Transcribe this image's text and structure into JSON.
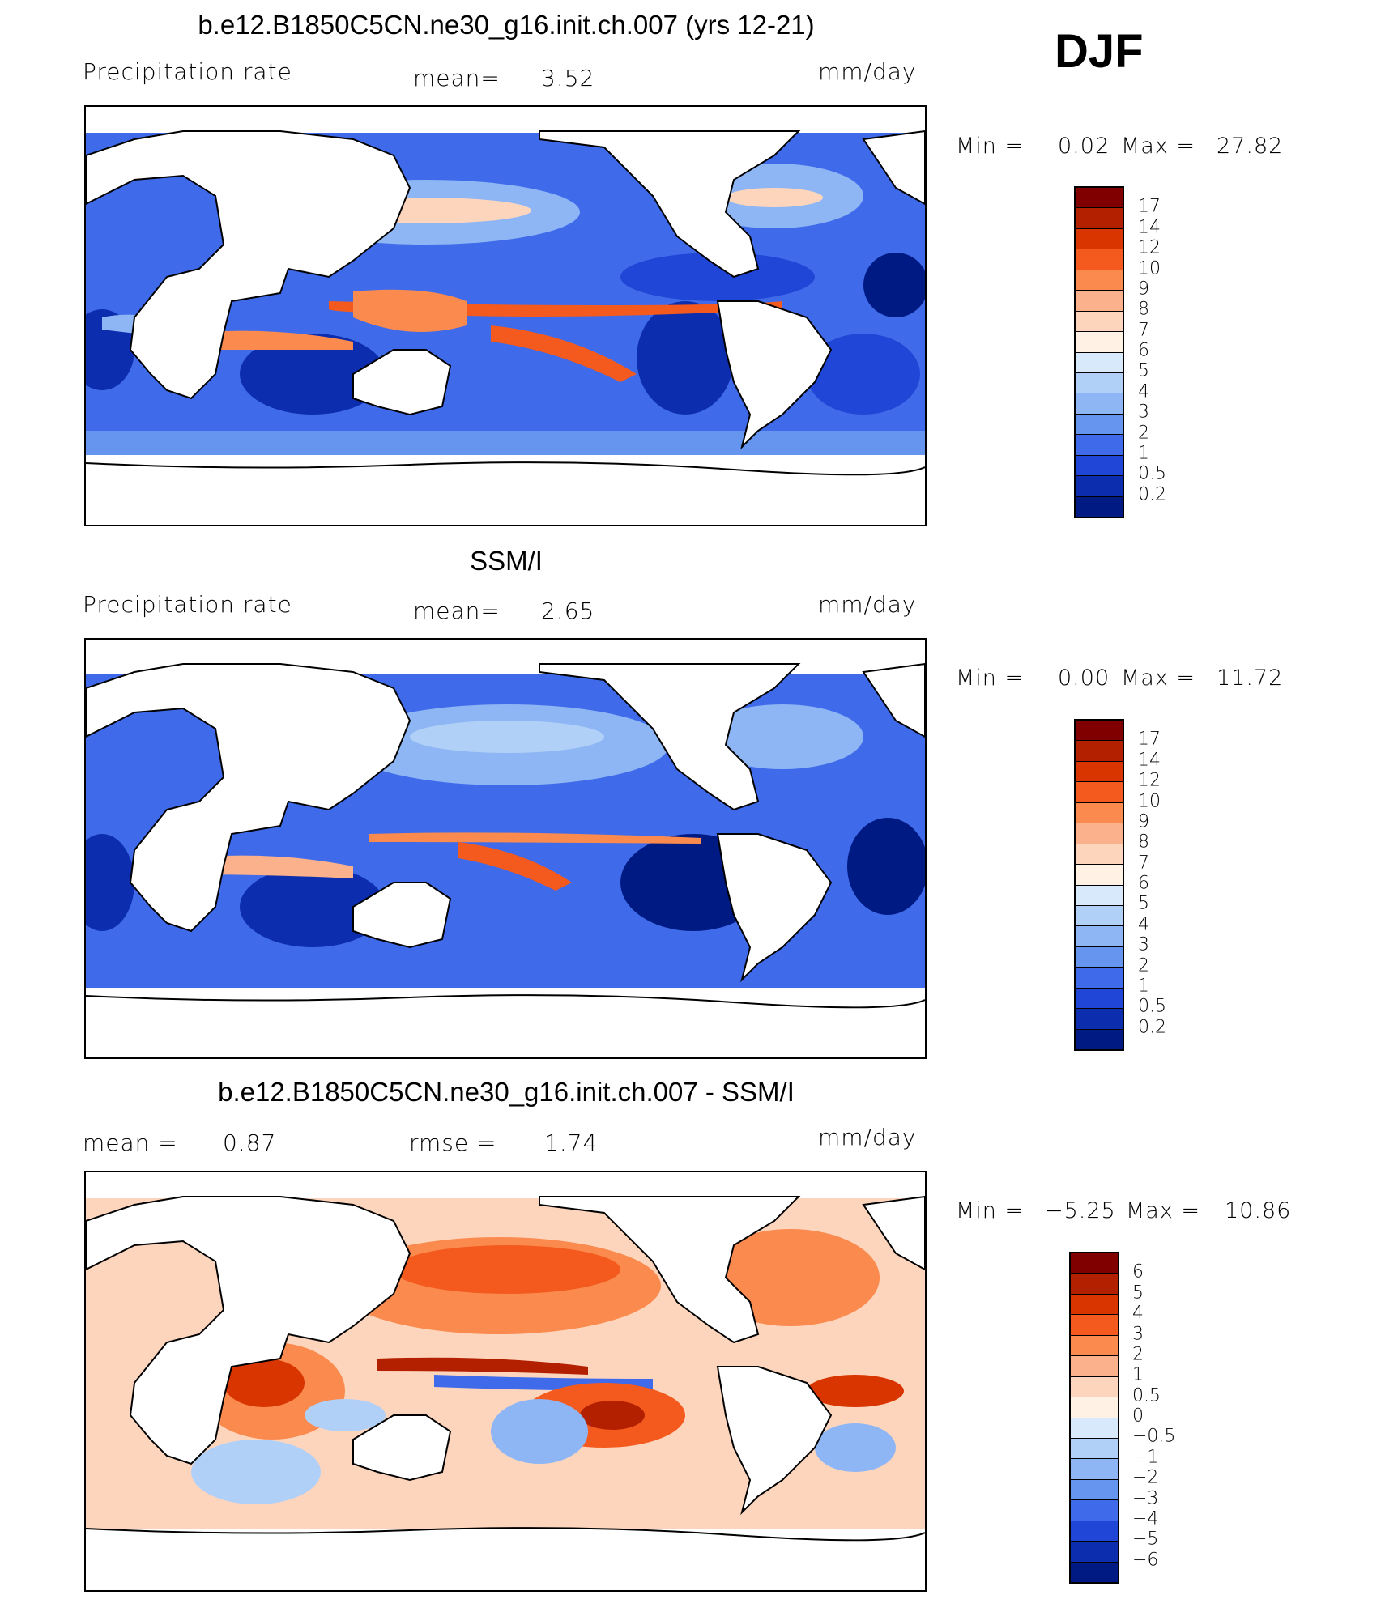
{
  "season": "DJF",
  "units_label": "mm/day",
  "panels": [
    {
      "id": "model",
      "title": "b.e12.B1850C5CN.ne30_g16.init.ch.007 (yrs 12-21)",
      "left_label": "Precipitation  rate",
      "stat_label": "mean=",
      "stat_value": "3.52",
      "units": "mm/day",
      "min_label": "Min  =",
      "min_value": "0.02",
      "max_label": "Max  =",
      "max_value": "27.82"
    },
    {
      "id": "obs",
      "title": "SSM/I",
      "left_label": "Precipitation  rate",
      "stat_label": "mean=",
      "stat_value": "2.65",
      "units": "mm/day",
      "min_label": "Min  =",
      "min_value": "0.00",
      "max_label": "Max  =",
      "max_value": "11.72"
    },
    {
      "id": "diff",
      "title": "b.e12.B1850C5CN.ne30_g16.init.ch.007 - SSM/I",
      "left_label": "mean  =",
      "left_value": "0.87",
      "stat_label": "rmse  =",
      "stat_value": "1.74",
      "units": "mm/day",
      "min_label": "Min  =",
      "min_value": "−5.25",
      "max_label": "Max  =",
      "max_value": "10.86"
    }
  ],
  "precip_colorbar": {
    "levels": [
      "17",
      "14",
      "12",
      "10",
      "9",
      "8",
      "7",
      "6",
      "5",
      "4",
      "3",
      "2",
      "1",
      "0.5",
      "0.2"
    ],
    "colors": [
      "#800000",
      "#b22000",
      "#d93500",
      "#f45a1e",
      "#fa8a4e",
      "#fbb18c",
      "#fdd5bd",
      "#fff1e3",
      "#d7e9fb",
      "#b1d0f8",
      "#8eb6f4",
      "#6595ef",
      "#3f6bea",
      "#1f46d6",
      "#0c2dad",
      "#001a84"
    ]
  },
  "diff_colorbar": {
    "levels": [
      "6",
      "5",
      "4",
      "3",
      "2",
      "1",
      "0.5",
      "0",
      "−0.5",
      "−1",
      "−2",
      "−3",
      "−4",
      "−5",
      "−6"
    ],
    "colors": [
      "#800000",
      "#b22000",
      "#d93500",
      "#f45a1e",
      "#fa8a4e",
      "#fbb18c",
      "#fdd5bd",
      "#fff1e3",
      "#d7e9fb",
      "#b1d0f8",
      "#8eb6f4",
      "#6595ef",
      "#3f6bea",
      "#1f46d6",
      "#0c2dad",
      "#001a84"
    ]
  },
  "chart_data": [
    {
      "type": "heatmap",
      "title": "b.e12.B1850C5CN.ne30_g16.init.ch.007 (yrs 12-21)",
      "variable": "Precipitation  rate",
      "units": "mm/day",
      "mean": 3.52,
      "min": 0.02,
      "max": 27.82,
      "contour_levels": [
        0.2,
        0.5,
        1,
        2,
        3,
        4,
        5,
        6,
        7,
        8,
        9,
        10,
        12,
        14,
        17
      ],
      "projection": "global lat-lon, centered on Pacific"
    },
    {
      "type": "heatmap",
      "title": "SSM/I",
      "variable": "Precipitation  rate",
      "units": "mm/day",
      "mean": 2.65,
      "min": 0.0,
      "max": 11.72,
      "contour_levels": [
        0.2,
        0.5,
        1,
        2,
        3,
        4,
        5,
        6,
        7,
        8,
        9,
        10,
        12,
        14,
        17
      ],
      "projection": "global lat-lon, centered on Pacific"
    },
    {
      "type": "heatmap",
      "title": "b.e12.B1850C5CN.ne30_g16.init.ch.007 - SSM/I",
      "units": "mm/day",
      "mean": 0.87,
      "rmse": 1.74,
      "min": -5.25,
      "max": 10.86,
      "contour_levels": [
        -6,
        -5,
        -4,
        -3,
        -2,
        -1,
        -0.5,
        0,
        0.5,
        1,
        2,
        3,
        4,
        5,
        6
      ],
      "projection": "global lat-lon, centered on Pacific"
    }
  ]
}
